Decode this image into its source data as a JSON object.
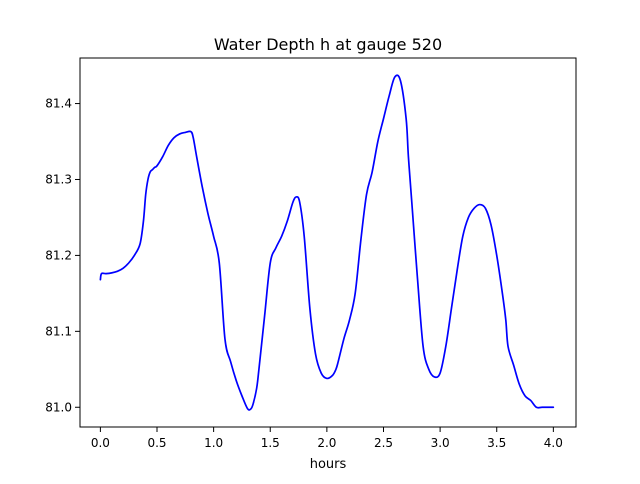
{
  "chart_data": {
    "type": "line",
    "title": "Water Depth h at gauge 520",
    "xlabel": "hours",
    "ylabel": "",
    "xlim": [
      -0.18,
      4.2
    ],
    "ylim": [
      80.974,
      81.46
    ],
    "xticks": [
      0.0,
      0.5,
      1.0,
      1.5,
      2.0,
      2.5,
      3.0,
      3.5,
      4.0
    ],
    "xtick_labels": [
      "0.0",
      "0.5",
      "1.0",
      "1.5",
      "2.0",
      "2.5",
      "3.0",
      "3.5",
      "4.0"
    ],
    "yticks": [
      81.0,
      81.1,
      81.2,
      81.3,
      81.4
    ],
    "ytick_labels": [
      "81.0",
      "81.1",
      "81.2",
      "81.3",
      "81.4"
    ],
    "grid": false,
    "series": [
      {
        "color": "#0000ff",
        "x": [
          0.0,
          0.01,
          0.05,
          0.1,
          0.15,
          0.2,
          0.25,
          0.3,
          0.35,
          0.38,
          0.4,
          0.42,
          0.44,
          0.46,
          0.48,
          0.5,
          0.55,
          0.6,
          0.65,
          0.7,
          0.75,
          0.8,
          0.82,
          0.85,
          0.9,
          0.95,
          1.0,
          1.05,
          1.1,
          1.15,
          1.2,
          1.25,
          1.3,
          1.33,
          1.35,
          1.38,
          1.4,
          1.45,
          1.5,
          1.55,
          1.6,
          1.65,
          1.7,
          1.73,
          1.76,
          1.8,
          1.85,
          1.9,
          1.95,
          2.0,
          2.05,
          2.08,
          2.1,
          2.15,
          2.2,
          2.25,
          2.3,
          2.35,
          2.4,
          2.45,
          2.5,
          2.55,
          2.6,
          2.65,
          2.7,
          2.72,
          2.75,
          2.8,
          2.85,
          2.9,
          2.95,
          3.0,
          3.05,
          3.1,
          3.15,
          3.2,
          3.25,
          3.3,
          3.35,
          3.4,
          3.45,
          3.5,
          3.55,
          3.58,
          3.6,
          3.65,
          3.7,
          3.75,
          3.8,
          3.85,
          3.9,
          3.95,
          4.0
        ],
        "y": [
          81.168,
          81.176,
          81.176,
          81.177,
          81.179,
          81.183,
          81.19,
          81.2,
          81.215,
          81.245,
          81.28,
          81.3,
          81.31,
          81.313,
          81.316,
          81.318,
          81.33,
          81.345,
          81.355,
          81.36,
          81.362,
          81.363,
          81.355,
          81.33,
          81.29,
          81.255,
          81.225,
          81.19,
          81.09,
          81.06,
          81.035,
          81.015,
          80.998,
          80.998,
          81.005,
          81.025,
          81.05,
          81.12,
          81.19,
          81.21,
          81.225,
          81.245,
          81.27,
          81.277,
          81.27,
          81.225,
          81.13,
          81.07,
          81.045,
          81.038,
          81.042,
          81.05,
          81.06,
          81.09,
          81.115,
          81.15,
          81.22,
          81.28,
          81.31,
          81.35,
          81.38,
          81.41,
          81.435,
          81.43,
          81.38,
          81.33,
          81.27,
          81.17,
          81.08,
          81.05,
          81.04,
          81.045,
          81.08,
          81.13,
          81.18,
          81.225,
          81.25,
          81.262,
          81.267,
          81.262,
          81.24,
          81.2,
          81.15,
          81.115,
          81.08,
          81.055,
          81.03,
          81.015,
          81.009,
          81.0,
          81.0,
          81.0,
          81.0
        ]
      }
    ]
  }
}
